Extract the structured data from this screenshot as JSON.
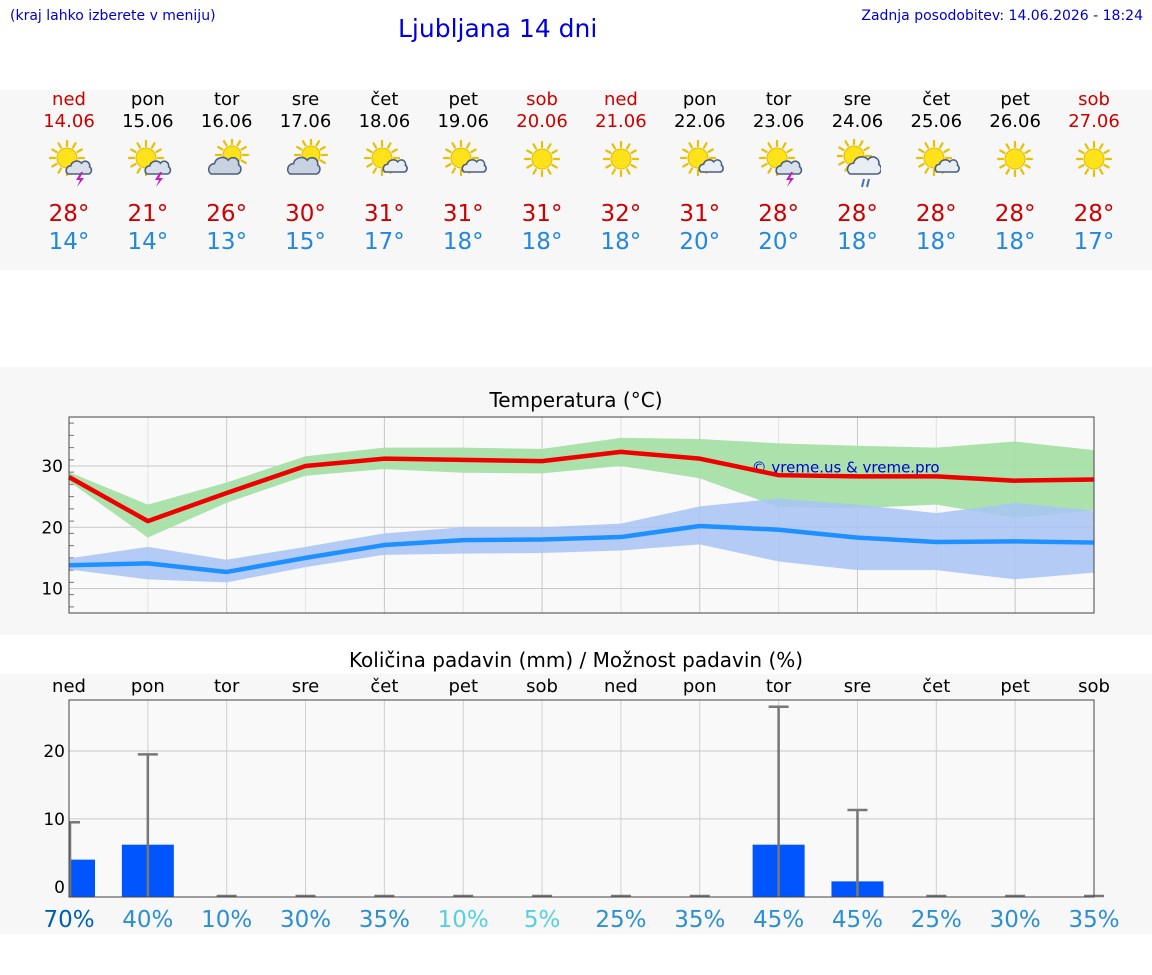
{
  "header": {
    "hint": "(kraj lahko izberete v meniju)",
    "title": "Ljubljana 14 dni",
    "updated": "Zadnja posodobitev: 14.06.2026 - 18:24"
  },
  "days": [
    {
      "name": "ned",
      "date": "14.06",
      "hi": "28°",
      "lo": "14°",
      "icon": "sun-cloud-lightning-icon",
      "weekend": true
    },
    {
      "name": "pon",
      "date": "15.06",
      "hi": "21°",
      "lo": "14°",
      "icon": "sun-cloud-lightning-icon",
      "weekend": false
    },
    {
      "name": "tor",
      "date": "16.06",
      "hi": "26°",
      "lo": "13°",
      "icon": "sun-behind-cloud-icon",
      "weekend": false
    },
    {
      "name": "sre",
      "date": "17.06",
      "hi": "30°",
      "lo": "15°",
      "icon": "sun-behind-cloud-icon",
      "weekend": false
    },
    {
      "name": "čet",
      "date": "18.06",
      "hi": "31°",
      "lo": "17°",
      "icon": "sun-small-cloud-icon",
      "weekend": false
    },
    {
      "name": "pet",
      "date": "19.06",
      "hi": "31°",
      "lo": "18°",
      "icon": "sun-small-cloud-icon",
      "weekend": false
    },
    {
      "name": "sob",
      "date": "20.06",
      "hi": "31°",
      "lo": "18°",
      "icon": "sun-icon",
      "weekend": true
    },
    {
      "name": "ned",
      "date": "21.06",
      "hi": "32°",
      "lo": "18°",
      "icon": "sun-icon",
      "weekend": true
    },
    {
      "name": "pon",
      "date": "22.06",
      "hi": "31°",
      "lo": "20°",
      "icon": "sun-small-cloud-icon",
      "weekend": false
    },
    {
      "name": "tor",
      "date": "23.06",
      "hi": "28°",
      "lo": "20°",
      "icon": "sun-cloud-lightning-icon",
      "weekend": false
    },
    {
      "name": "sre",
      "date": "24.06",
      "hi": "28°",
      "lo": "18°",
      "icon": "sun-cloud-rain-icon",
      "weekend": false
    },
    {
      "name": "čet",
      "date": "25.06",
      "hi": "28°",
      "lo": "18°",
      "icon": "sun-small-cloud-icon",
      "weekend": false
    },
    {
      "name": "pet",
      "date": "26.06",
      "hi": "28°",
      "lo": "18°",
      "icon": "sun-icon",
      "weekend": false
    },
    {
      "name": "sob",
      "date": "27.06",
      "hi": "28°",
      "lo": "17°",
      "icon": "sun-icon",
      "weekend": true
    }
  ],
  "colors": {
    "weekend": "#cc0000",
    "weekday": "#000000",
    "max": "#ee0000",
    "min": "#1e90ff",
    "maxBand": "#a6e0a6",
    "minBand": "#a8c4f4",
    "bar": "#0055ff",
    "whisker": "#777777"
  },
  "chart_data": [
    {
      "type": "line",
      "title": "Temperatura (°C)",
      "watermark": "© vreme.us & vreme.pro",
      "ylim": [
        6,
        38
      ],
      "yticks": [
        10,
        20,
        30
      ],
      "grid": true,
      "x": [
        0,
        1,
        2,
        3,
        4,
        5,
        6,
        7,
        8,
        9,
        10,
        11,
        12,
        13
      ],
      "series": [
        {
          "name": "max",
          "values": [
            28.2,
            21.0,
            25.6,
            30.0,
            31.2,
            31.0,
            30.8,
            32.3,
            31.2,
            28.5,
            28.3,
            28.3,
            27.6,
            27.8
          ],
          "band_upper": [
            29.0,
            23.7,
            27.3,
            31.6,
            33.0,
            33.0,
            32.8,
            34.6,
            34.4,
            33.7,
            33.3,
            33.0,
            34.0,
            32.6
          ],
          "band_lower": [
            27.5,
            18.3,
            24.0,
            28.4,
            29.5,
            28.9,
            28.8,
            30.0,
            28.0,
            23.3,
            23.1,
            23.7,
            21.5,
            22.8
          ]
        },
        {
          "name": "min",
          "values": [
            13.8,
            14.1,
            12.7,
            15.0,
            17.1,
            17.9,
            18.0,
            18.4,
            20.2,
            19.6,
            18.3,
            17.6,
            17.7,
            17.5
          ],
          "band_upper": [
            14.9,
            16.8,
            14.7,
            16.8,
            19.0,
            20.0,
            20.0,
            20.6,
            23.4,
            24.7,
            23.7,
            22.3,
            24.0,
            22.7
          ],
          "band_lower": [
            13.1,
            11.5,
            11.0,
            13.5,
            15.5,
            15.7,
            15.8,
            16.2,
            17.2,
            14.4,
            13.0,
            13.0,
            11.5,
            12.6
          ]
        }
      ]
    },
    {
      "type": "bar",
      "title": "Količina padavin (mm) / Možnost padavin (%)",
      "categories": [
        "ned",
        "pon",
        "tor",
        "sre",
        "čet",
        "pet",
        "sob",
        "ned",
        "pon",
        "tor",
        "sre",
        "čet",
        "pet",
        "sob"
      ],
      "ylim": [
        -1.5,
        27.5
      ],
      "yticks": [
        0,
        10,
        20
      ],
      "grid": true,
      "values": [
        4.0,
        6.2,
        0,
        0,
        0,
        0,
        0,
        0,
        0,
        6.2,
        0.8,
        0,
        0,
        0
      ],
      "whisker_max": [
        9.5,
        19.5,
        0,
        0,
        0,
        0,
        0,
        0,
        0,
        26.5,
        11.3,
        0,
        0,
        0
      ],
      "probability": [
        "70%",
        "40%",
        "10%",
        "30%",
        "35%",
        "10%",
        "5%",
        "25%",
        "35%",
        "45%",
        "45%",
        "25%",
        "30%",
        "35%"
      ],
      "probability_colors": [
        "#0060b0",
        "#2b8fd0",
        "#2b8fd0",
        "#2b8fd0",
        "#2b8fd0",
        "#55d0e0",
        "#55d0e0",
        "#2b8fd0",
        "#2b8fd0",
        "#2b8fd0",
        "#2b8fd0",
        "#2b8fd0",
        "#2b8fd0",
        "#2b8fd0"
      ]
    }
  ]
}
